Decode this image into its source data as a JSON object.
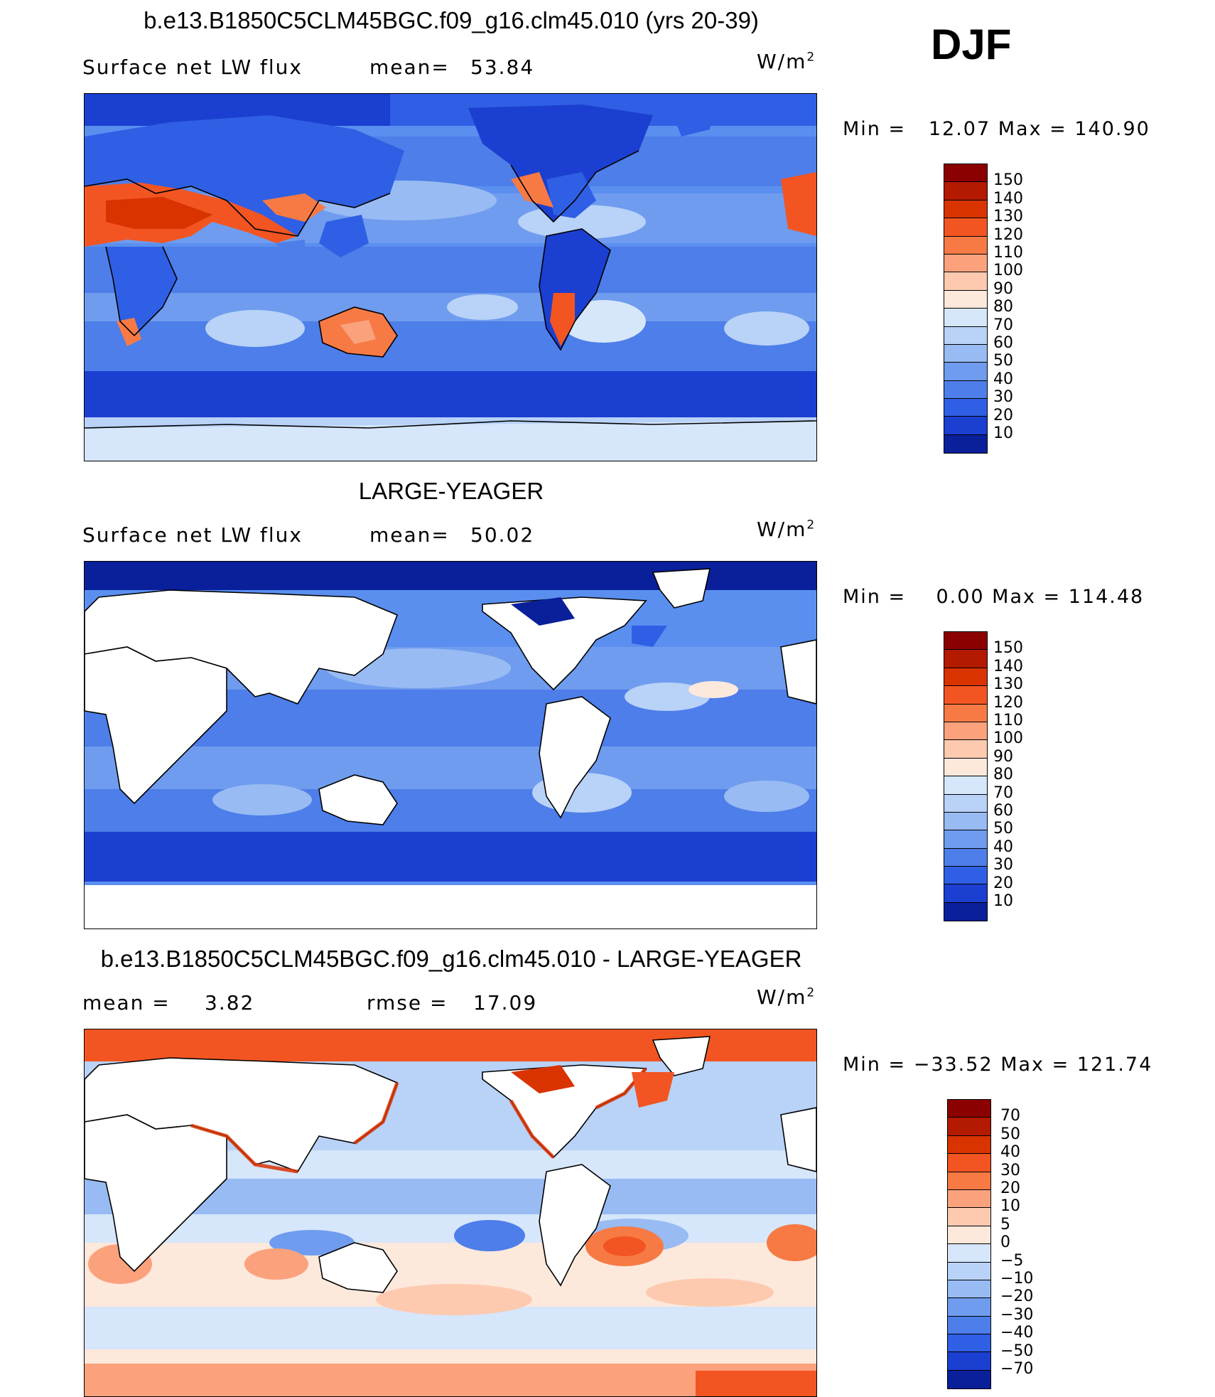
{
  "season": "DJF",
  "units_base": "W/m",
  "units_exp": "2",
  "colors": {
    "ocean_base": "#5a8ff0",
    "land": "#ffffff",
    "coast": "#000000"
  },
  "colorbar_abs": {
    "labels": [
      "150",
      "140",
      "130",
      "120",
      "110",
      "100",
      "90",
      "80",
      "70",
      "60",
      "50",
      "40",
      "30",
      "20",
      "10"
    ],
    "colors": [
      "#8b0000",
      "#b31a00",
      "#d93300",
      "#f25522",
      "#f77a45",
      "#fba27d",
      "#fdcab0",
      "#fde8dc",
      "#d6e6fb",
      "#b8d2f8",
      "#98bbf3",
      "#6f9cee",
      "#4d7ee9",
      "#2f5fe4",
      "#1b3fd0",
      "#0a1f9a"
    ]
  },
  "colorbar_diff": {
    "labels": [
      "70",
      "50",
      "40",
      "30",
      "20",
      "10",
      "5",
      "0",
      "−5",
      "−10",
      "−20",
      "−30",
      "−40",
      "−50",
      "−70"
    ],
    "colors": [
      "#8b0000",
      "#b31a00",
      "#d93300",
      "#f25522",
      "#f77a45",
      "#fba27d",
      "#fdcab0",
      "#fde8dc",
      "#d6e6fb",
      "#b8d2f8",
      "#98bbf3",
      "#6f9cee",
      "#4d7ee9",
      "#2f5fe4",
      "#1b3fd0",
      "#0a1f9a"
    ]
  },
  "panels": [
    {
      "title": "b.e13.B1850C5CLM45BGC.f09_g16.clm45.010 (yrs 20-39)",
      "left_label": "Surface net LW flux",
      "stat_label": "mean=",
      "stat_value": "53.84",
      "minmax": "Min =   12.07 Max = 140.90"
    },
    {
      "title": "LARGE-YEAGER",
      "left_label": "Surface net LW flux",
      "stat_label": "mean=",
      "stat_value": "50.02",
      "minmax": "Min =    0.00 Max = 114.48"
    },
    {
      "title": "b.e13.B1850C5CLM45BGC.f09_g16.clm45.010 - LARGE-YEAGER",
      "left_label": "mean =",
      "left_value": "3.82",
      "stat_label": "rmse =",
      "stat_value": "17.09",
      "minmax": "Min = −33.52 Max = 121.74"
    }
  ]
}
